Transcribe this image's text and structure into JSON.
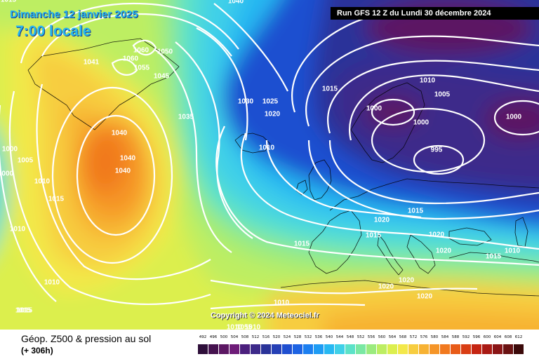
{
  "header": {
    "date_title": "Dimanche 12 janvier 2025",
    "time_title": "7:00 locale",
    "run_info": "Run GFS 12 Z du Lundi 30 décembre 2024"
  },
  "footer": {
    "parameter": "Géop. Z500 & pression au sol",
    "lead_time": "(+ 306h)",
    "copyright": "Copyright © 2024 Meteociel.fr"
  },
  "legend": {
    "levels": [
      "492",
      "496",
      "500",
      "504",
      "508",
      "512",
      "516",
      "520",
      "524",
      "528",
      "532",
      "536",
      "540",
      "544",
      "548",
      "552",
      "556",
      "560",
      "564",
      "568",
      "572",
      "576",
      "580",
      "584",
      "588",
      "592",
      "596",
      "600",
      "604",
      "608",
      "612"
    ],
    "colors": [
      "#2e0f3a",
      "#45124f",
      "#5c1763",
      "#6e1c78",
      "#4b1f7d",
      "#3d2a8a",
      "#2a3399",
      "#2640b6",
      "#1f4fd0",
      "#1d63e3",
      "#1c7ff0",
      "#1e9cf4",
      "#27b8f2",
      "#3fd0e8",
      "#5ce2c8",
      "#7ae8a3",
      "#9beb7e",
      "#bdee62",
      "#dcef4e",
      "#f3e84a",
      "#f7cd3f",
      "#f7b233",
      "#f59528",
      "#f1791f",
      "#e85b18",
      "#d93e14",
      "#c52512",
      "#a91a14",
      "#8a1516",
      "#6a1212",
      "#3b0909"
    ]
  },
  "pressure_labels": [
    {
      "text": "1040"
    },
    {
      "text": "1060"
    },
    {
      "text": "1050"
    },
    {
      "text": "1060"
    },
    {
      "text": "1041"
    },
    {
      "text": "1055"
    },
    {
      "text": "1045"
    },
    {
      "text": "1030"
    },
    {
      "text": "1025"
    },
    {
      "text": "1035"
    },
    {
      "text": "1020"
    },
    {
      "text": "1040"
    },
    {
      "text": "1040"
    },
    {
      "text": "1040"
    },
    {
      "text": "1000"
    },
    {
      "text": "1005"
    },
    {
      "text": "1000"
    },
    {
      "text": "1015"
    },
    {
      "text": "1010"
    },
    {
      "text": "1015"
    },
    {
      "text": "1010"
    },
    {
      "text": "1010"
    },
    {
      "text": "1015"
    },
    {
      "text": "1010"
    },
    {
      "text": "1015"
    },
    {
      "text": "1000"
    },
    {
      "text": "1005"
    },
    {
      "text": "1000"
    },
    {
      "text": "1000"
    },
    {
      "text": "995"
    },
    {
      "text": "1015"
    },
    {
      "text": "1020"
    },
    {
      "text": "1015"
    },
    {
      "text": "1020"
    },
    {
      "text": "1020"
    },
    {
      "text": "1010"
    },
    {
      "text": "1015"
    },
    {
      "text": "1015"
    },
    {
      "text": "1020"
    },
    {
      "text": "1020"
    },
    {
      "text": "1020"
    },
    {
      "text": "1010"
    },
    {
      "text": "1015"
    },
    {
      "text": "1010"
    },
    {
      "text": "1010"
    },
    {
      "text": "1055"
    },
    {
      "text": "1010"
    }
  ]
}
